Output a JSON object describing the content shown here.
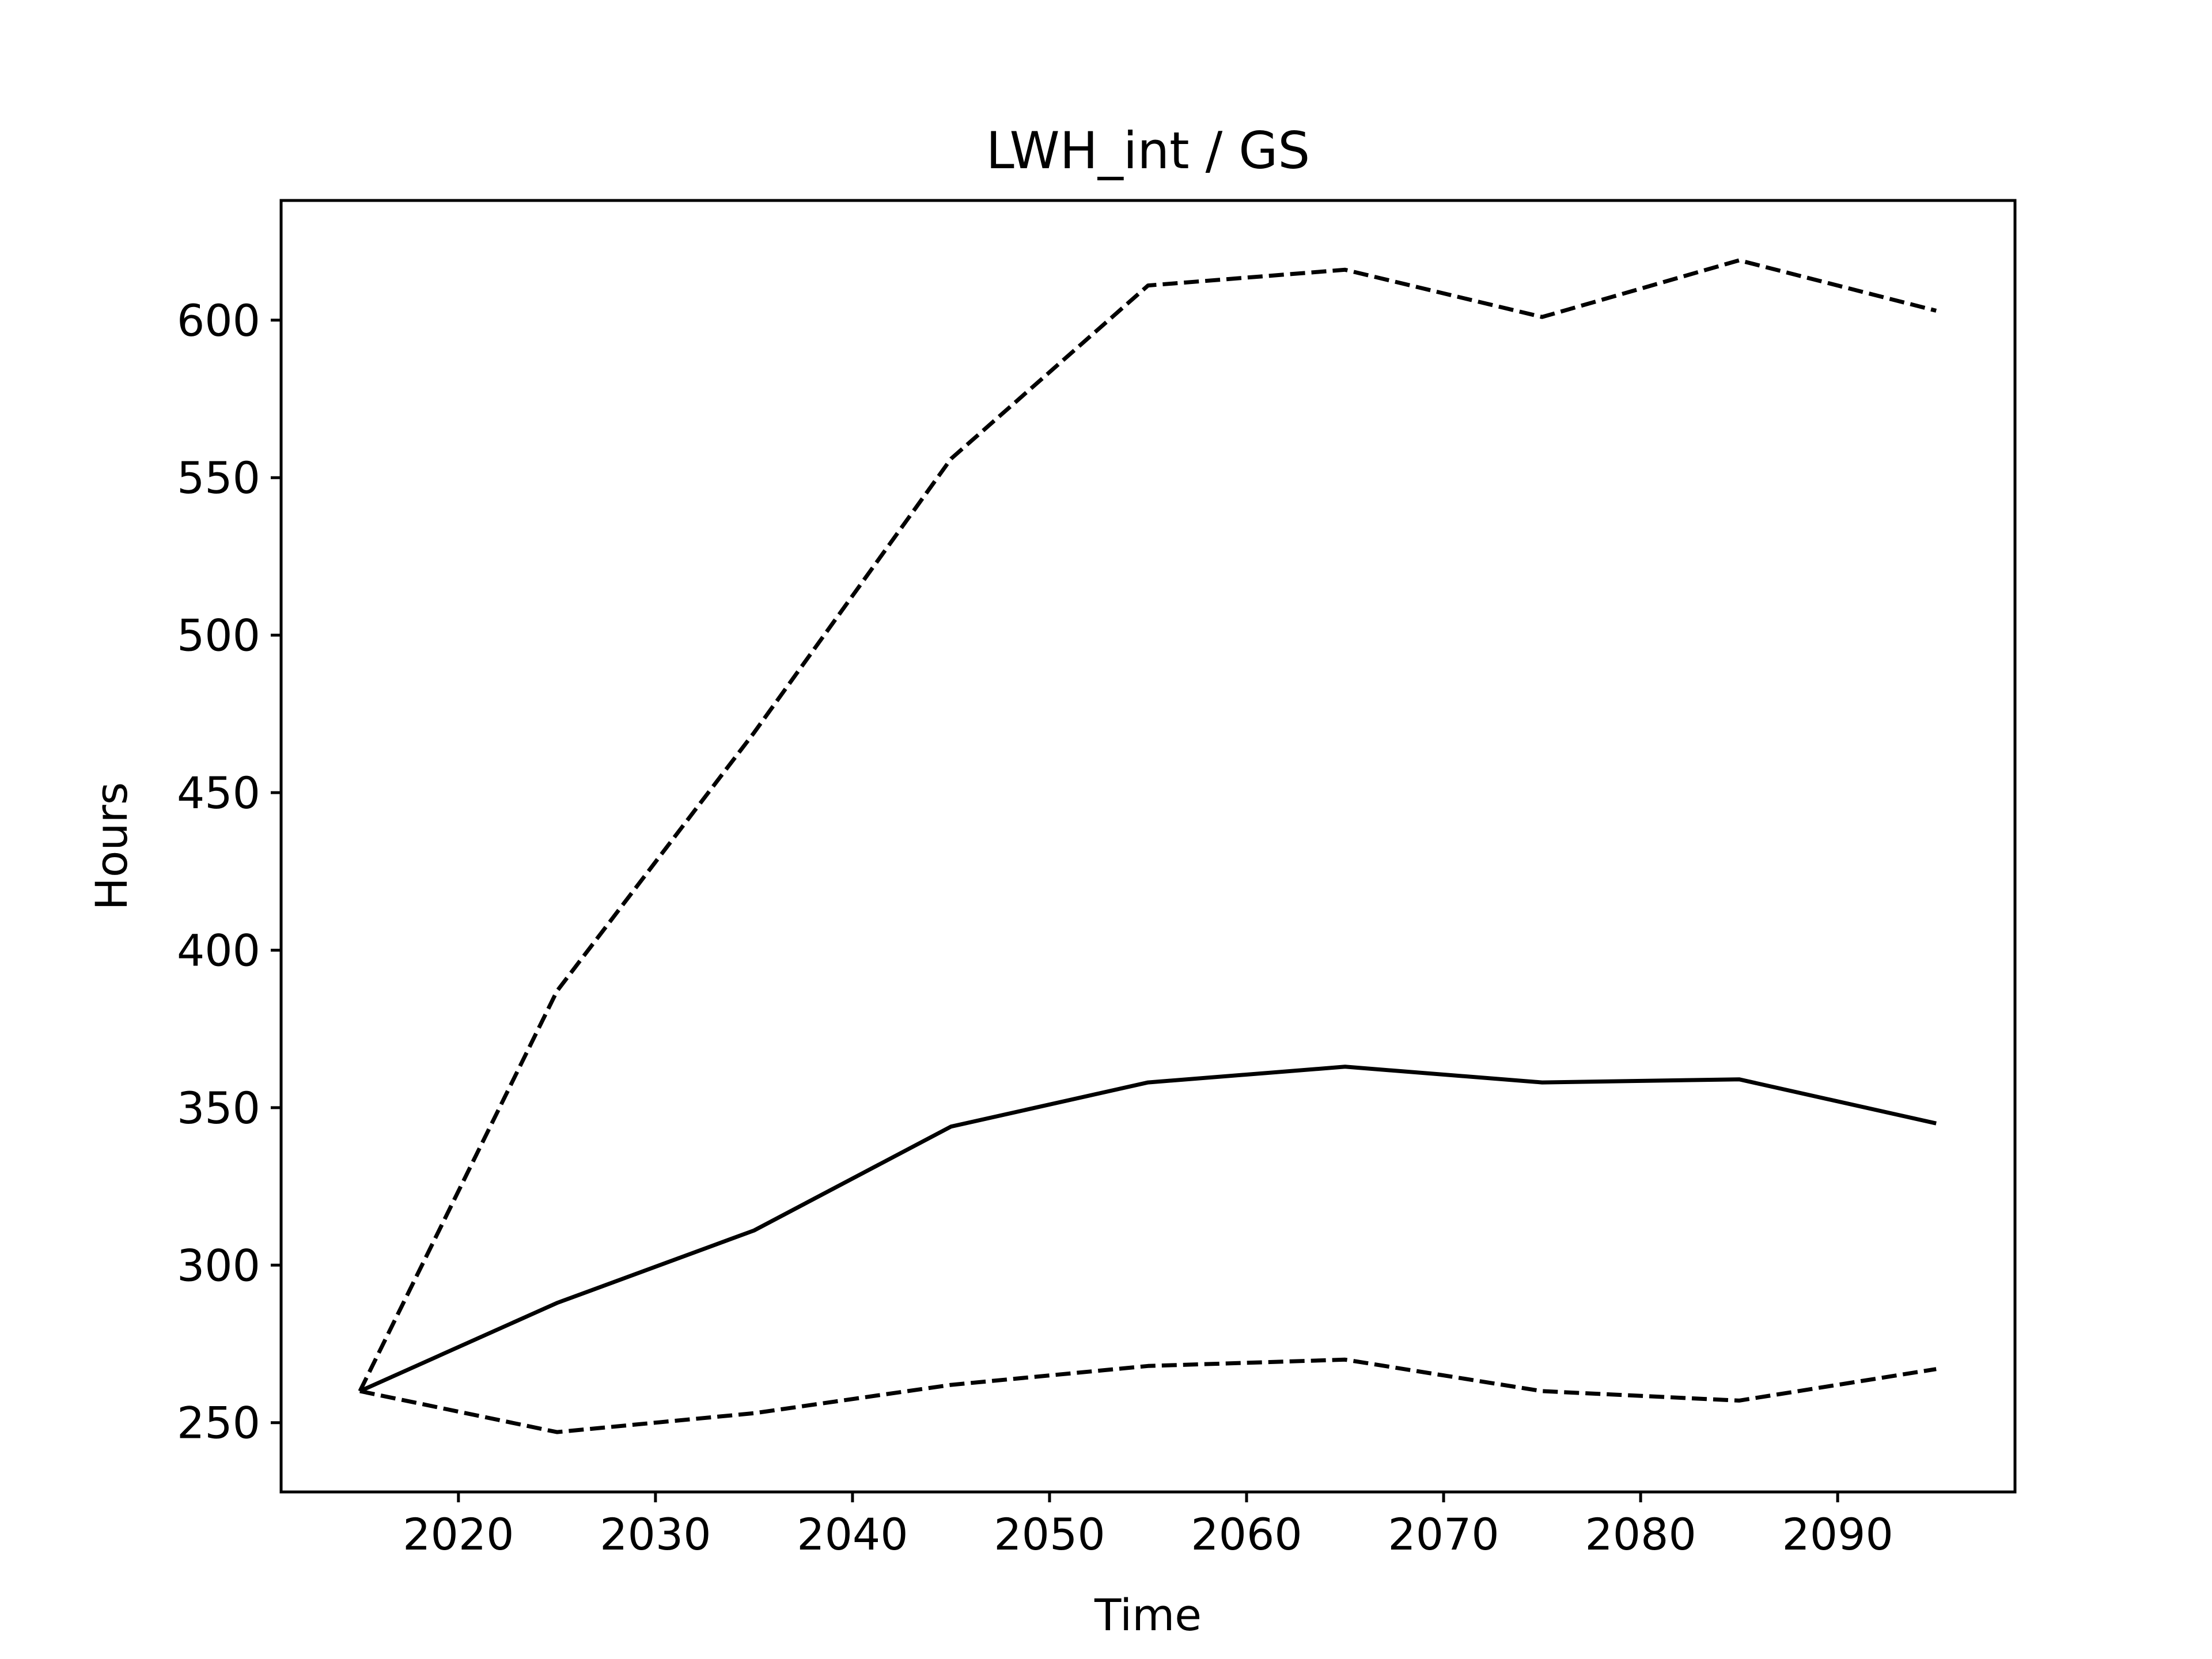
{
  "chart_data": {
    "type": "line",
    "title": "LWH_int / GS",
    "xlabel": "Time",
    "ylabel": "Hours",
    "xlim": [
      2011,
      2099
    ],
    "ylim": [
      228,
      638
    ],
    "xticks": [
      2020,
      2030,
      2040,
      2050,
      2060,
      2070,
      2080,
      2090
    ],
    "yticks": [
      250,
      300,
      350,
      400,
      450,
      500,
      550,
      600
    ],
    "grid": false,
    "legend": "none",
    "x": [
      2015,
      2025,
      2035,
      2045,
      2055,
      2065,
      2075,
      2085,
      2095
    ],
    "series": [
      {
        "style": "solid",
        "color": "#000000",
        "values": [
          260,
          288,
          311,
          344,
          358,
          363,
          358,
          359,
          345
        ]
      },
      {
        "style": "dashed",
        "color": "#000000",
        "values": [
          260,
          387,
          469,
          556,
          611,
          616,
          601,
          619,
          603
        ]
      },
      {
        "style": "dashed",
        "color": "#000000",
        "values": [
          260,
          247,
          253,
          262,
          268,
          270,
          260,
          257,
          267
        ]
      }
    ]
  }
}
